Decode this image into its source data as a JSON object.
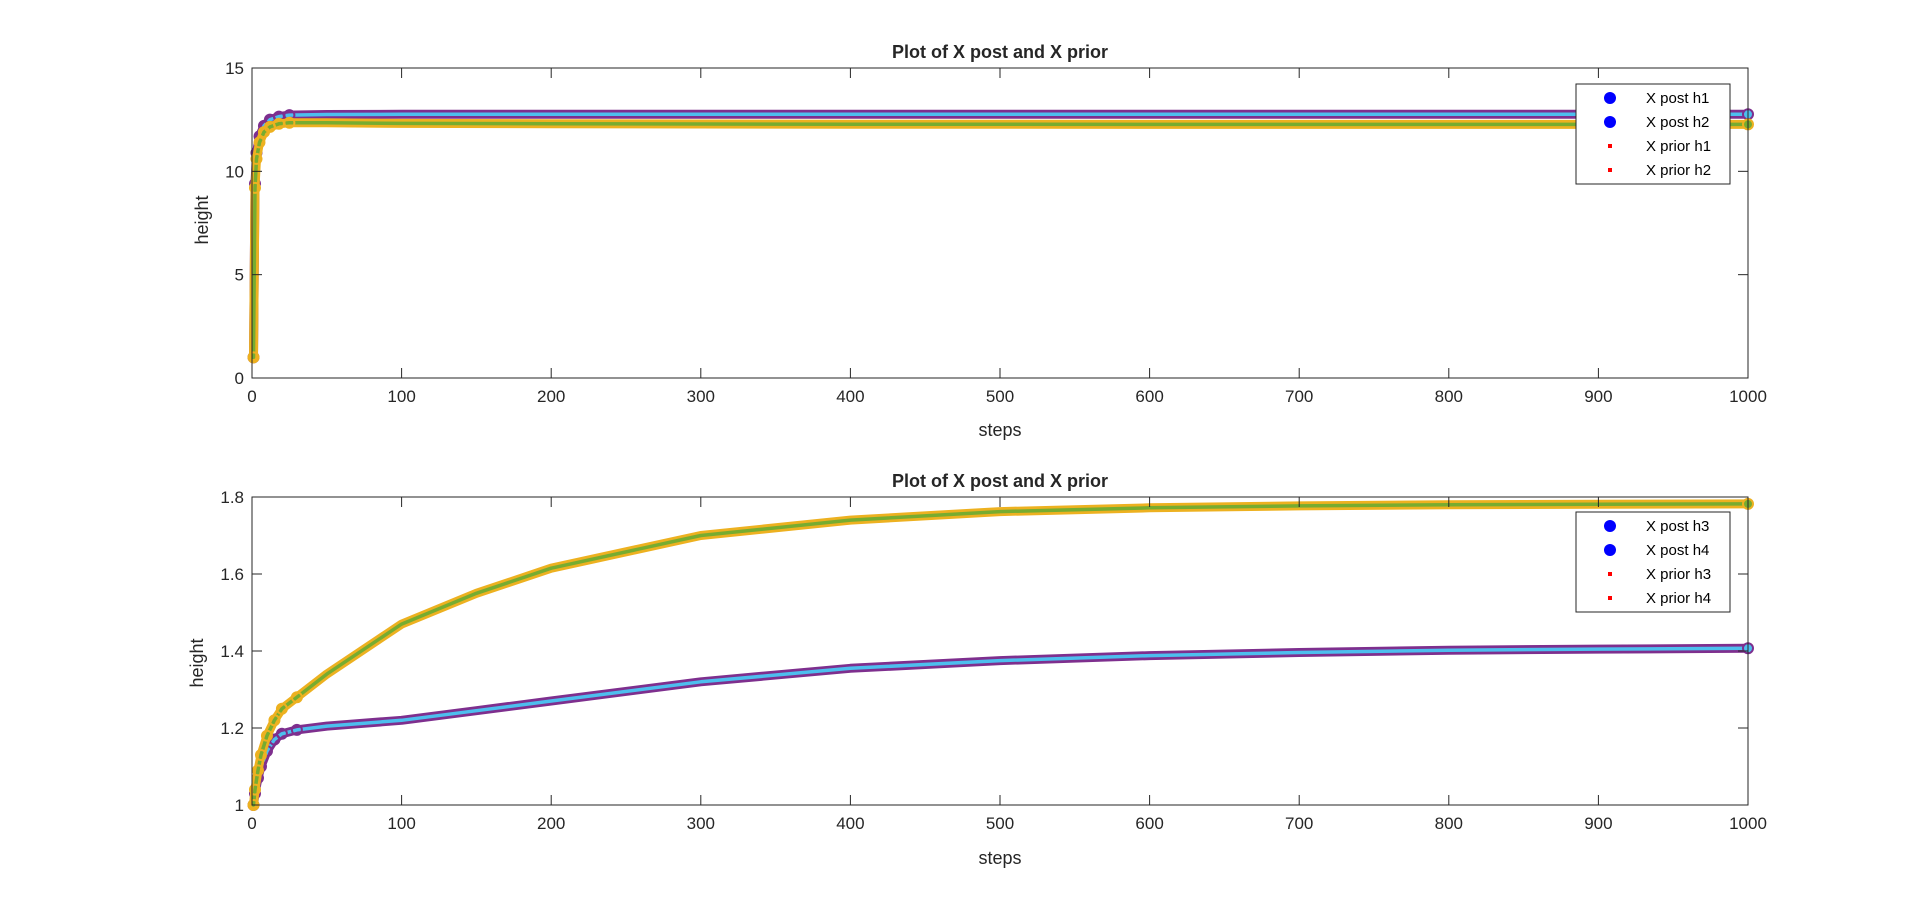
{
  "chart_data": [
    {
      "type": "line",
      "title": "Plot of X post and X prior",
      "xlabel": "steps",
      "ylabel": "height",
      "xlim": [
        0,
        1000
      ],
      "ylim": [
        0,
        15
      ],
      "xticks": [
        0,
        100,
        200,
        300,
        400,
        500,
        600,
        700,
        800,
        900,
        1000
      ],
      "yticks": [
        0,
        5,
        10,
        15
      ],
      "grid": false,
      "legend": {
        "placement": "top-right",
        "entries": [
          {
            "label": "X post h1",
            "marker": "dot",
            "color": "#0000ff"
          },
          {
            "label": "X post h2",
            "marker": "dot",
            "color": "#0000ff"
          },
          {
            "label": "X prior h1",
            "marker": "point",
            "color": "#ff0000"
          },
          {
            "label": "X prior h2",
            "marker": "point",
            "color": "#ff0000"
          }
        ]
      },
      "series": [
        {
          "color": "#7e2f8e",
          "inner_color": "#4dbeee",
          "x": [
            1,
            2,
            3,
            5,
            8,
            12,
            18,
            25,
            50,
            100,
            200,
            400,
            600,
            800,
            1000
          ],
          "values": [
            1.0,
            9.4,
            10.9,
            11.7,
            12.2,
            12.5,
            12.65,
            12.72,
            12.75,
            12.76,
            12.76,
            12.76,
            12.76,
            12.76,
            12.76
          ]
        },
        {
          "color": "#edb120",
          "inner_color": "#77ac30",
          "x": [
            1,
            2,
            3,
            5,
            8,
            12,
            18,
            25,
            50,
            100,
            200,
            400,
            600,
            800,
            1000
          ],
          "values": [
            1.0,
            9.2,
            10.6,
            11.4,
            11.9,
            12.15,
            12.3,
            12.35,
            12.35,
            12.32,
            12.3,
            12.28,
            12.27,
            12.27,
            12.27
          ]
        }
      ]
    },
    {
      "type": "line",
      "title": "Plot of X post and X prior",
      "xlabel": "steps",
      "ylabel": "height",
      "xlim": [
        0,
        1000
      ],
      "ylim": [
        1,
        1.8
      ],
      "xticks": [
        0,
        100,
        200,
        300,
        400,
        500,
        600,
        700,
        800,
        900,
        1000
      ],
      "yticks": [
        1,
        1.2,
        1.4,
        1.6,
        1.8
      ],
      "grid": false,
      "legend": {
        "placement": "top-right",
        "entries": [
          {
            "label": "X post h3",
            "marker": "dot",
            "color": "#0000ff"
          },
          {
            "label": "X post h4",
            "marker": "dot",
            "color": "#0000ff"
          },
          {
            "label": "X prior h3",
            "marker": "point",
            "color": "#ff0000"
          },
          {
            "label": "X prior h4",
            "marker": "point",
            "color": "#ff0000"
          }
        ]
      },
      "series": [
        {
          "color": "#7e2f8e",
          "inner_color": "#4dbeee",
          "x": [
            1,
            2,
            4,
            6,
            10,
            15,
            20,
            30,
            50,
            100,
            150,
            200,
            300,
            400,
            500,
            600,
            700,
            800,
            900,
            1000
          ],
          "values": [
            1.0,
            1.03,
            1.07,
            1.1,
            1.14,
            1.17,
            1.185,
            1.195,
            1.205,
            1.22,
            1.245,
            1.27,
            1.32,
            1.355,
            1.375,
            1.388,
            1.396,
            1.402,
            1.405,
            1.407
          ]
        },
        {
          "color": "#edb120",
          "inner_color": "#77ac30",
          "x": [
            1,
            2,
            4,
            6,
            10,
            15,
            20,
            30,
            50,
            100,
            150,
            200,
            300,
            400,
            500,
            600,
            700,
            800,
            900,
            1000
          ],
          "values": [
            1.0,
            1.04,
            1.09,
            1.13,
            1.18,
            1.22,
            1.25,
            1.28,
            1.34,
            1.47,
            1.55,
            1.615,
            1.7,
            1.74,
            1.762,
            1.772,
            1.777,
            1.78,
            1.781,
            1.782
          ]
        }
      ]
    }
  ]
}
